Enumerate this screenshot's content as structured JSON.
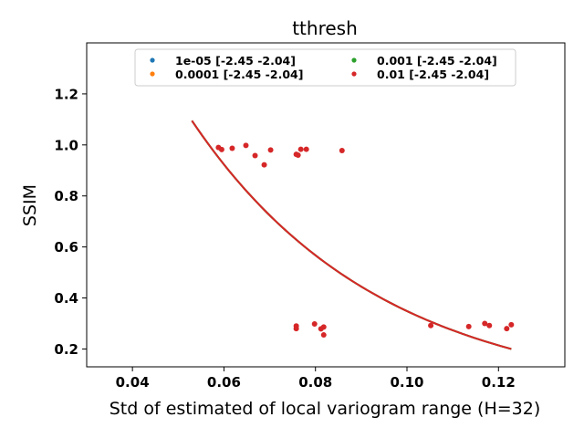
{
  "chart_data": {
    "type": "scatter",
    "title": "tthresh",
    "xlabel": "Std of estimated of local variogram range (H=32)",
    "ylabel": "SSIM",
    "xlim": [
      0.03,
      0.1345
    ],
    "ylim": [
      0.13,
      1.4
    ],
    "xticks": [
      0.04,
      0.06,
      0.08,
      0.1,
      0.12
    ],
    "xtick_labels": [
      "0.04",
      "0.06",
      "0.08",
      "0.10",
      "0.12"
    ],
    "yticks": [
      0.2,
      0.4,
      0.6,
      0.8,
      1.0,
      1.2
    ],
    "ytick_labels": [
      "0.2",
      "0.4",
      "0.6",
      "0.8",
      "1.0",
      "1.2"
    ],
    "grid": false,
    "legend": {
      "placement": "top-center",
      "columns": 2
    },
    "series": [
      {
        "name": "1e-05 [-2.45 -2.04]",
        "color": "#1f77b4",
        "points": []
      },
      {
        "name": "0.0001 [-2.45 -2.04]",
        "color": "#ff7f0e",
        "points": []
      },
      {
        "name": "0.001 [-2.45 -2.04]",
        "color": "#2ca02c",
        "points": []
      },
      {
        "name": "0.01 [-2.45 -2.04]",
        "color": "#d62728",
        "points": [
          [
            0.0588,
            0.99
          ],
          [
            0.0595,
            0.982
          ],
          [
            0.0618,
            0.987
          ],
          [
            0.0648,
            0.998
          ],
          [
            0.0668,
            0.958
          ],
          [
            0.0688,
            0.922
          ],
          [
            0.0702,
            0.98
          ],
          [
            0.0758,
            0.963
          ],
          [
            0.0762,
            0.96
          ],
          [
            0.0768,
            0.983
          ],
          [
            0.078,
            0.983
          ],
          [
            0.0858,
            0.978
          ],
          [
            0.0758,
            0.29
          ],
          [
            0.0758,
            0.28
          ],
          [
            0.0798,
            0.298
          ],
          [
            0.0812,
            0.279
          ],
          [
            0.0818,
            0.286
          ],
          [
            0.0818,
            0.255
          ],
          [
            0.1052,
            0.292
          ],
          [
            0.1135,
            0.288
          ],
          [
            0.117,
            0.3
          ],
          [
            0.118,
            0.292
          ],
          [
            0.1218,
            0.28
          ],
          [
            0.1228,
            0.295
          ]
        ]
      }
    ],
    "fit_lines": [
      {
        "color": "#1f77b4",
        "x_range": [
          0.053,
          0.1228
        ],
        "y0": 1.095,
        "y1": 0.2
      },
      {
        "color": "#ff7f0e",
        "x_range": [
          0.053,
          0.1228
        ],
        "y0": 1.095,
        "y1": 0.2
      },
      {
        "color": "#2ca02c",
        "x_range": [
          0.053,
          0.1228
        ],
        "y0": 1.095,
        "y1": 0.2
      },
      {
        "color": "#d62728",
        "x_range": [
          0.053,
          0.1228
        ],
        "y0": 1.095,
        "y1": 0.2
      }
    ]
  }
}
